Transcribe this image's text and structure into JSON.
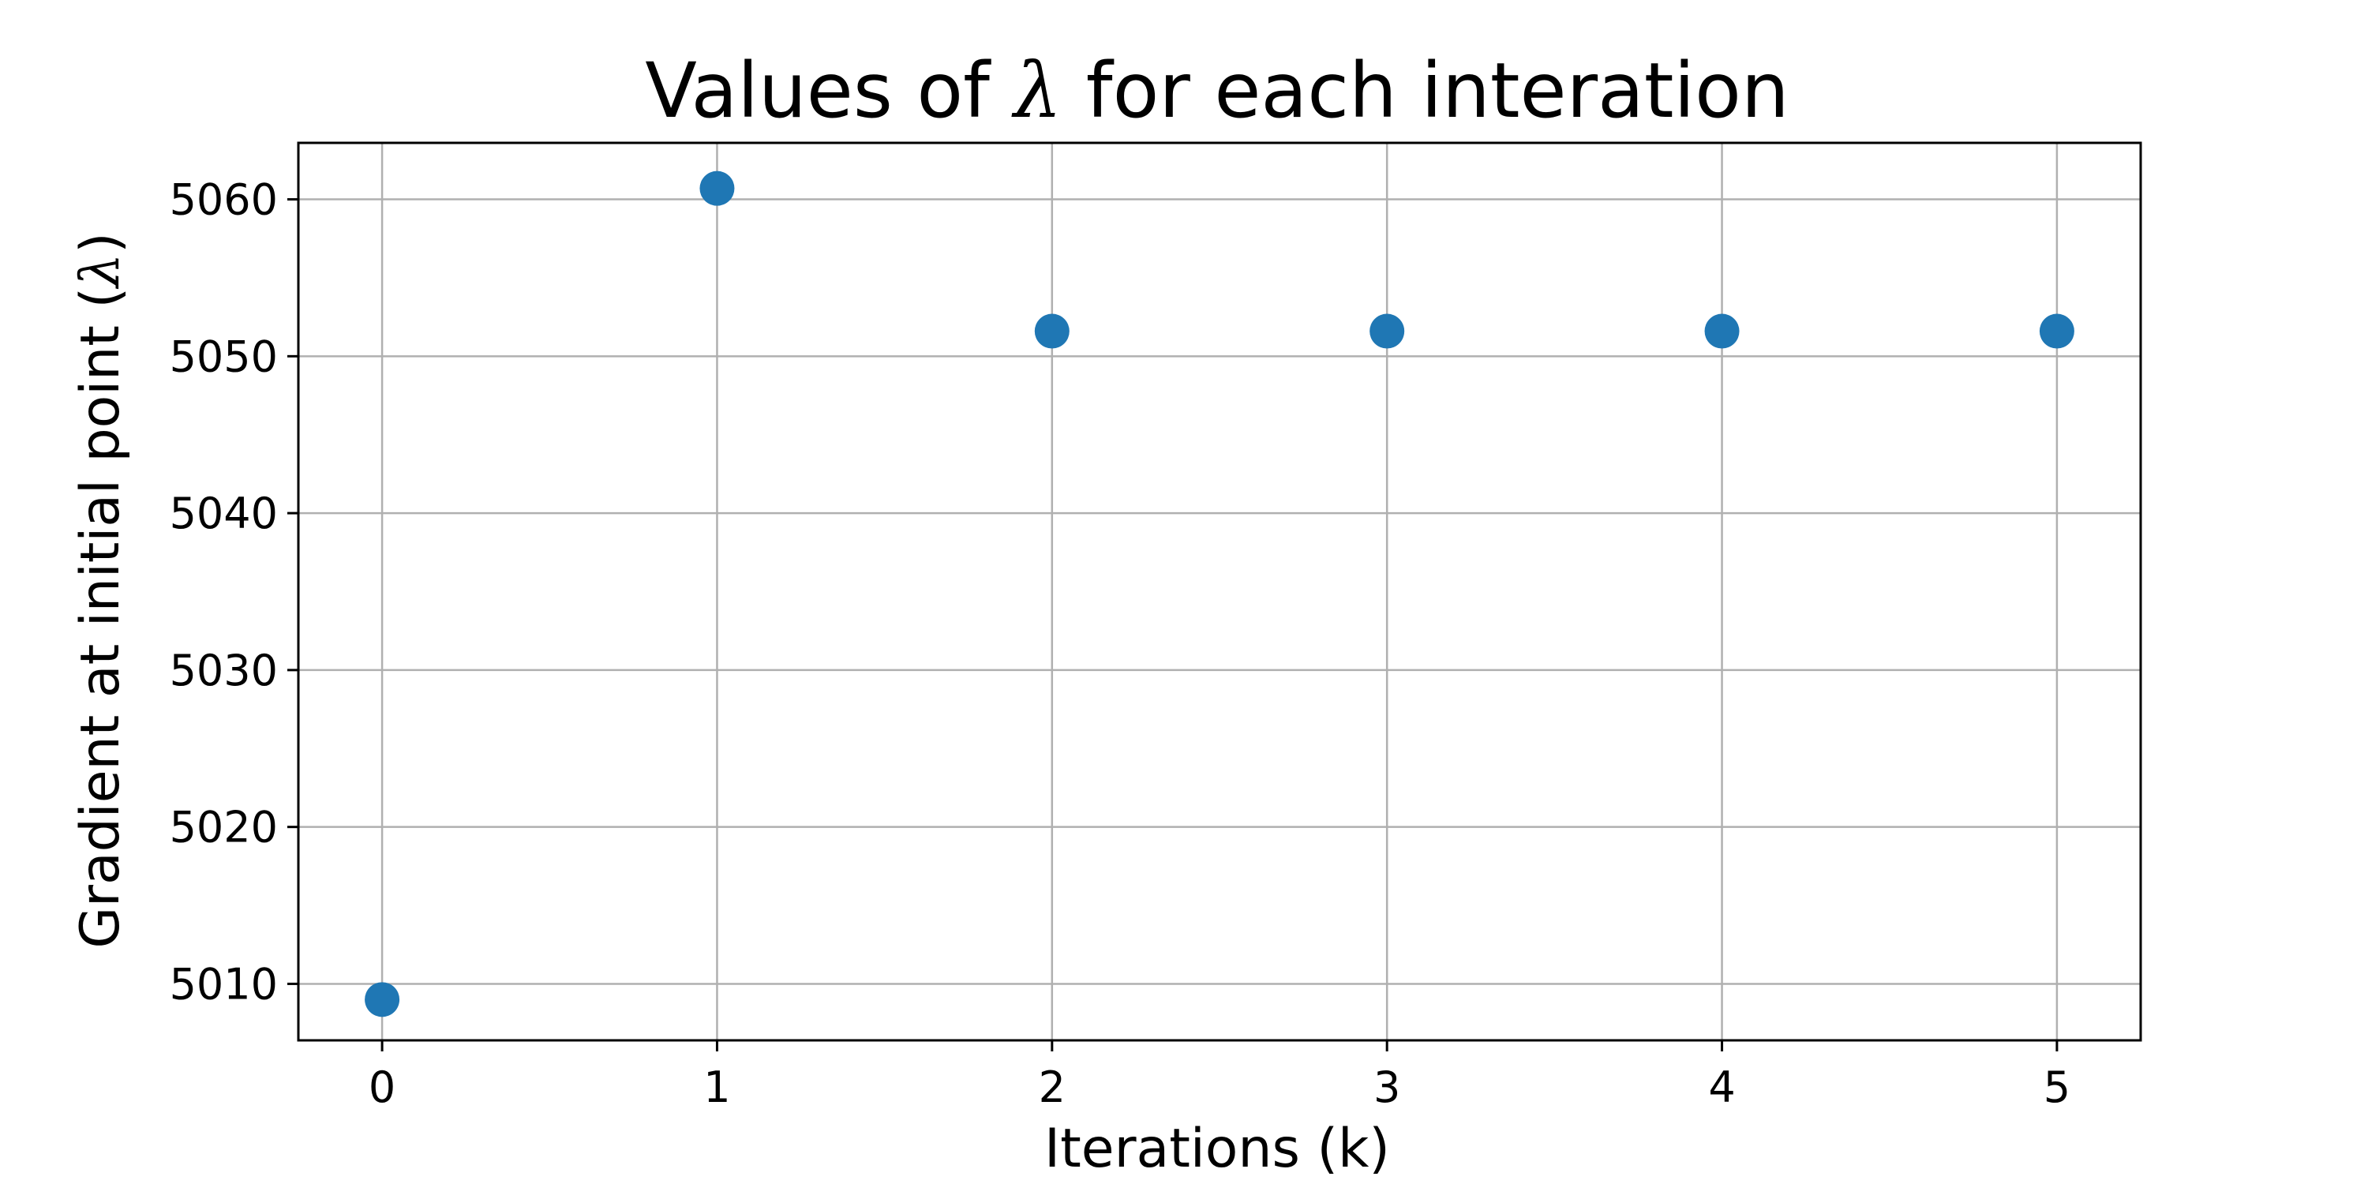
{
  "chart_data": {
    "type": "scatter",
    "title_prefix": "Values of ",
    "title_symbol": "λ",
    "title_suffix": " for each interation",
    "xlabel": "Iterations (k)",
    "ylabel_prefix": "Gradient at initial point (",
    "ylabel_symbol": "λ",
    "ylabel_suffix": ")",
    "x": [
      0,
      1,
      2,
      3,
      4,
      5
    ],
    "y": [
      5009.0,
      5060.7,
      5051.6,
      5051.6,
      5051.6,
      5051.6
    ],
    "xlim": [
      -0.25,
      5.25
    ],
    "ylim": [
      5006.4,
      5063.6
    ],
    "xticks": [
      0,
      1,
      2,
      3,
      4,
      5
    ],
    "yticks": [
      5010,
      5020,
      5030,
      5040,
      5050,
      5060
    ],
    "grid": true,
    "legend": "none",
    "colors": {
      "marker": "#1f77b4",
      "grid": "#b0b0b0",
      "axes": "#000000"
    }
  }
}
